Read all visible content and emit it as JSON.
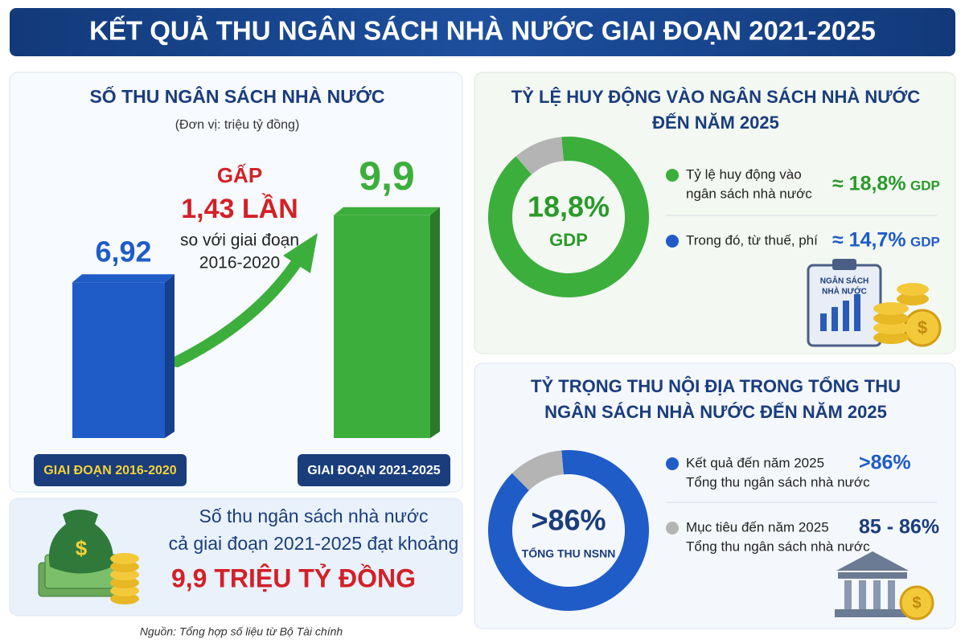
{
  "header": {
    "title": "KẾT QUẢ THU NGÂN SÁCH NHÀ NƯỚC GIAI ĐOẠN 2021-2025"
  },
  "chart_data": [
    {
      "type": "bar",
      "title": "SỐ THU NGÂN SÁCH NHÀ NƯỚC",
      "subtitle": "(Đơn vị: triệu tỷ đồng)",
      "categories": [
        "GIAI ĐOẠN 2016-2020",
        "GIAI ĐOẠN 2021-2025"
      ],
      "values": [
        6.92,
        9.9
      ],
      "value_labels": [
        "6,92",
        "9,9"
      ],
      "colors": [
        "#1f5cc8",
        "#3cae3c"
      ],
      "annotation": [
        "GẤP",
        "1,43 LẦN",
        "so với giai đoạn",
        "2016-2020"
      ]
    },
    {
      "type": "pie",
      "title": [
        "TỶ LỆ HUY ĐỘNG VÀO NGÂN SÁCH NHÀ NƯỚC",
        "ĐẾN NĂM 2025"
      ],
      "center": [
        "18,8%",
        "GDP"
      ],
      "values": [
        90,
        10
      ],
      "colors": [
        "#3cae3c",
        "#b4b4b4"
      ],
      "legend": [
        {
          "text": [
            "Tỷ lệ huy động vào",
            "ngân sách nhà nước"
          ],
          "value": "≈ 18,8%",
          "unit": "GDP",
          "color": "#3cae3c"
        },
        {
          "text": [
            "Trong đó, từ thuế, phí"
          ],
          "value": "≈ 14,7%",
          "unit": "GDP",
          "color": "#1f5cc8"
        }
      ]
    },
    {
      "type": "pie",
      "title": [
        "TỶ TRỌNG THU NỘI ĐỊA TRONG TỔNG THU",
        "NGÂN SÁCH NHÀ NƯỚC ĐẾN NĂM 2025"
      ],
      "center": [
        ">86%",
        "TỔNG THU NSNN"
      ],
      "values": [
        89,
        11
      ],
      "colors": [
        "#1f5cc8",
        "#b4b4b4"
      ],
      "legend": [
        {
          "text": [
            "Kết quả đến năm 2025",
            "Tổng thu ngân sách nhà nước"
          ],
          "value": ">86%",
          "color": "#1f5cc8"
        },
        {
          "text": [
            "Mục tiêu đến năm 2025",
            "Tổng thu ngân sách nhà nước"
          ],
          "value": "85 - 86%",
          "color": "#b4b4b4"
        }
      ]
    }
  ],
  "icon": [
    "NGÂN SÁCH",
    "NHÀ NƯỚC"
  ],
  "summary": [
    "Số thu ngân sách nhà nước",
    "cả giai đoạn 2021-2025 đạt khoảng",
    "9,9 TRIỆU TỶ ĐỒNG"
  ],
  "source": "Nguồn: Tổng hợp số liệu từ Bộ Tài chính"
}
